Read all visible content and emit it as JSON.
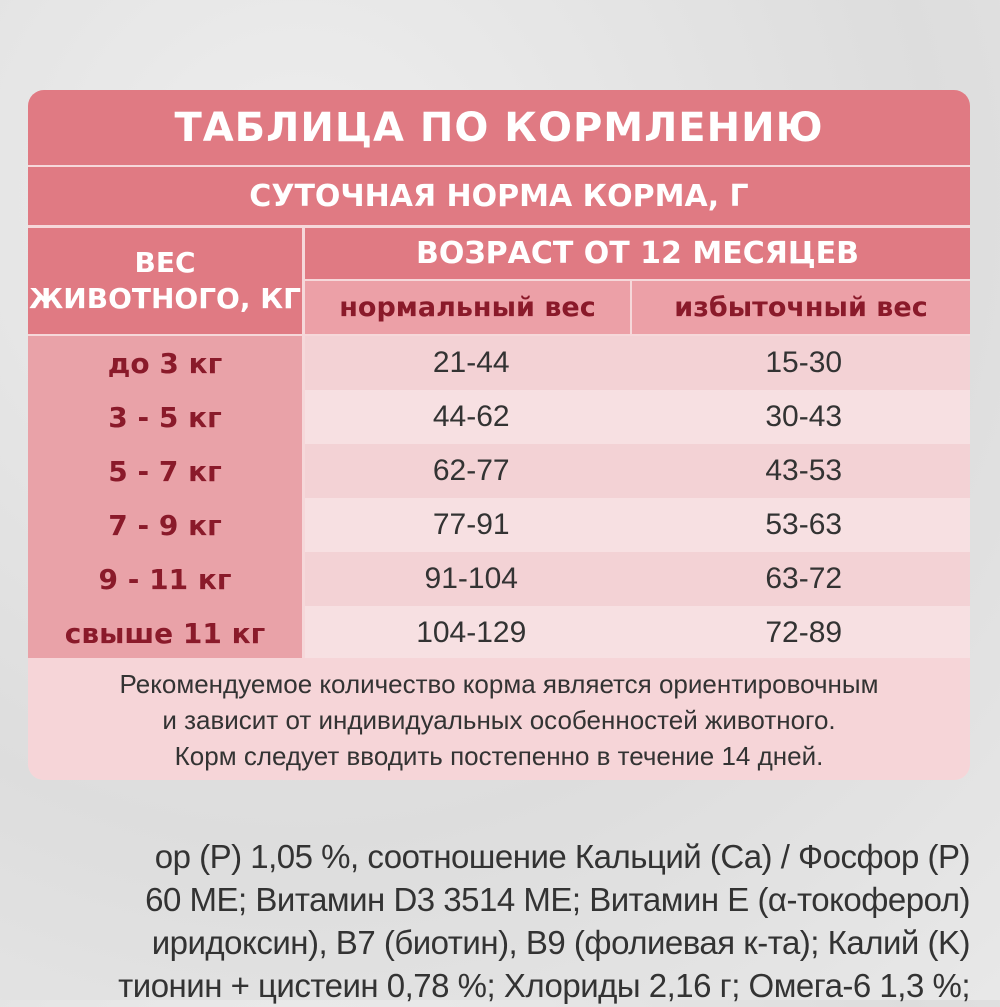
{
  "table": {
    "title": "ТАБЛИЦА ПО КОРМЛЕНИЮ",
    "subtitle": "СУТОЧНАЯ НОРМА КОРМА, Г",
    "weight_header": "ВЕС ЖИВОТНОГО, КГ",
    "age_header": "ВОЗРАСТ ОТ 12 МЕСЯЦЕВ",
    "columns": [
      "нормальный вес",
      "избыточный вес"
    ],
    "rows": [
      {
        "weight": "до 3 кг",
        "normal": "21-44",
        "over": "15-30"
      },
      {
        "weight": "3 - 5 кг",
        "normal": "44-62",
        "over": "30-43"
      },
      {
        "weight": "5 - 7 кг",
        "normal": "62-77",
        "over": "43-53"
      },
      {
        "weight": "7 - 9 кг",
        "normal": "77-91",
        "over": "53-63"
      },
      {
        "weight": "9 - 11 кг",
        "normal": "91-104",
        "over": "63-72"
      },
      {
        "weight": "свыше 11 кг",
        "normal": "104-129",
        "over": "72-89"
      }
    ],
    "note": [
      "Рекомендуемое количество корма является ориентировочным",
      "и зависит от индивидуальных особенностей животного.",
      "Корм следует вводить постепенно в течение 14 дней."
    ]
  },
  "composition_lines": [
    "ор (P) 1,05 %, соотношение Кальций (Ca) / Фосфор (P)",
    "60 МЕ; Витамин D3 3514 МЕ; Витамин Е (α-токоферол)",
    "иридоксин), B7 (биотин), B9 (фолиевая к-та); Калий (K)",
    "тионин + цистеин 0,78 %; Хлориды 2,16 г; Омега-6 1,3 %;"
  ],
  "colors": {
    "header": "#e07a83",
    "subheader": "#eca0a7",
    "text_dark_red": "#8a1a2a"
  }
}
